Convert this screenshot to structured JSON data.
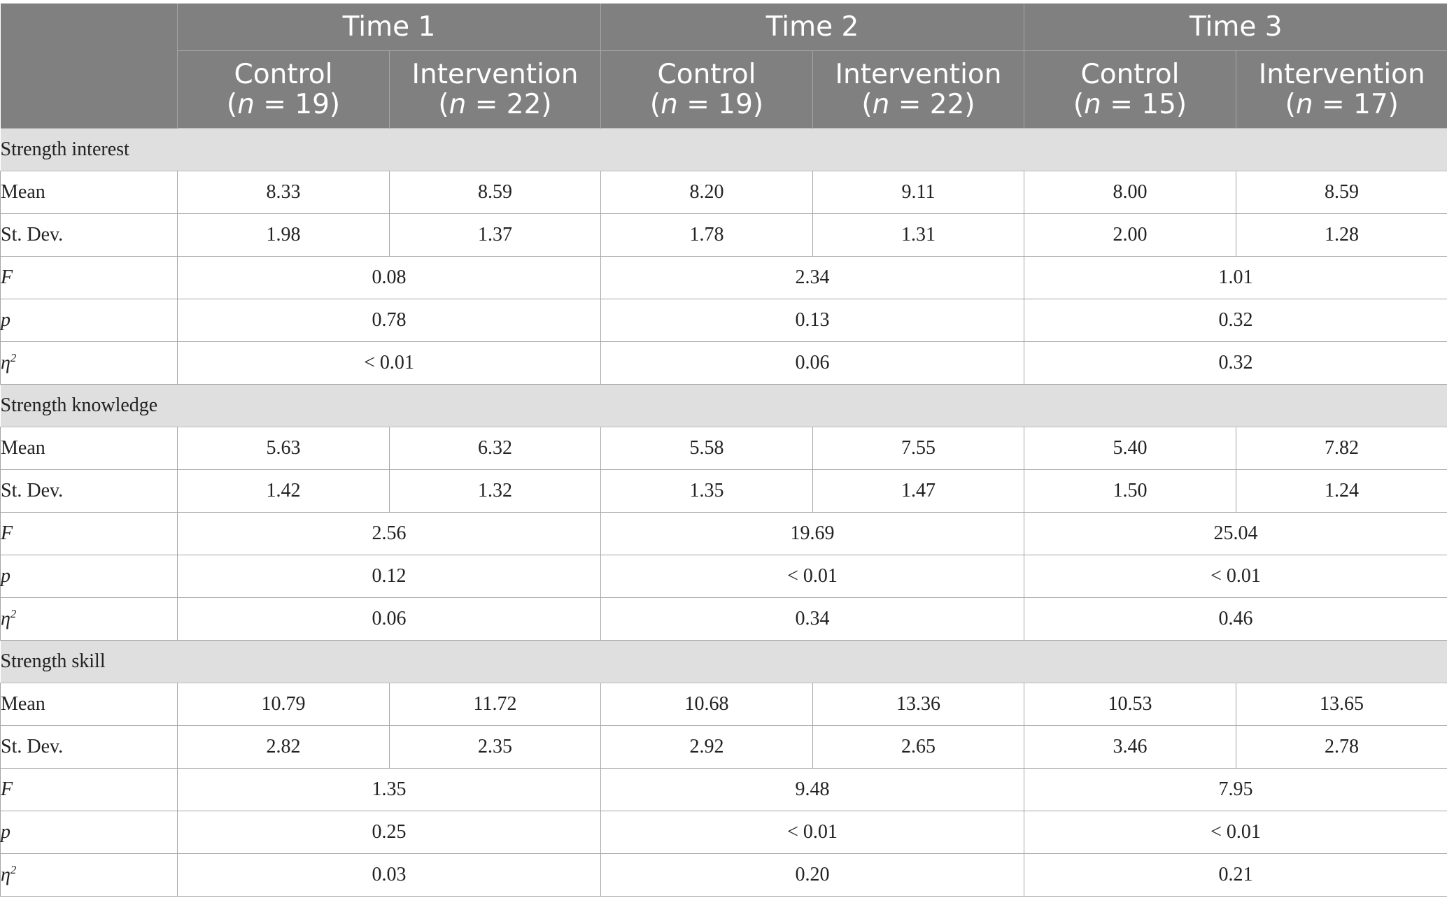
{
  "header": {
    "times": [
      "Time 1",
      "Time 2",
      "Time 3"
    ],
    "groups": [
      {
        "label": "Control",
        "n_prefix": "(",
        "n_var": "n",
        "n_value": " = 19)"
      },
      {
        "label": "Intervention",
        "n_prefix": "(",
        "n_var": "n",
        "n_value": " = 22)"
      },
      {
        "label": "Control",
        "n_prefix": "(",
        "n_var": "n",
        "n_value": " = 19)"
      },
      {
        "label": "Intervention",
        "n_prefix": "(",
        "n_var": "n",
        "n_value": " = 22)"
      },
      {
        "label": "Control",
        "n_prefix": "(",
        "n_var": "n",
        "n_value": " = 15)"
      },
      {
        "label": "Intervention",
        "n_prefix": "(",
        "n_var": "n",
        "n_value": " = 17)"
      }
    ]
  },
  "sections": [
    {
      "title": "Strength interest",
      "mean": {
        "label": "Mean",
        "values": [
          "8.33",
          "8.59",
          "8.20",
          "9.11",
          "8.00",
          "8.59"
        ]
      },
      "sd": {
        "label": "St. Dev.",
        "values": [
          "1.98",
          "1.37",
          "1.78",
          "1.31",
          "2.00",
          "1.28"
        ]
      },
      "F": {
        "label": "F",
        "values": [
          "0.08",
          "2.34",
          "1.01"
        ]
      },
      "p": {
        "label": "p",
        "values": [
          "0.78",
          "0.13",
          "0.32"
        ]
      },
      "eta": {
        "label": "η",
        "sup": "2",
        "values": [
          "< 0.01",
          "0.06",
          "0.32"
        ]
      }
    },
    {
      "title": "Strength knowledge",
      "mean": {
        "label": "Mean",
        "values": [
          "5.63",
          "6.32",
          "5.58",
          "7.55",
          "5.40",
          "7.82"
        ]
      },
      "sd": {
        "label": "St. Dev.",
        "values": [
          "1.42",
          "1.32",
          "1.35",
          "1.47",
          "1.50",
          "1.24"
        ]
      },
      "F": {
        "label": "F",
        "values": [
          "2.56",
          "19.69",
          "25.04"
        ]
      },
      "p": {
        "label": "p",
        "values": [
          "0.12",
          "< 0.01",
          "< 0.01"
        ]
      },
      "eta": {
        "label": "η",
        "sup": "2",
        "values": [
          "0.06",
          "0.34",
          "0.46"
        ]
      }
    },
    {
      "title": "Strength skill",
      "mean": {
        "label": "Mean",
        "values": [
          "10.79",
          "11.72",
          "10.68",
          "13.36",
          "10.53",
          "13.65"
        ]
      },
      "sd": {
        "label": "St. Dev.",
        "values": [
          "2.82",
          "2.35",
          "2.92",
          "2.65",
          "3.46",
          "2.78"
        ]
      },
      "F": {
        "label": "F",
        "values": [
          "1.35",
          "9.48",
          "7.95"
        ]
      },
      "p": {
        "label": "p",
        "values": [
          "0.25",
          "< 0.01",
          "< 0.01"
        ]
      },
      "eta": {
        "label": "η",
        "sup": "2",
        "values": [
          "0.03",
          "0.20",
          "0.21"
        ]
      }
    }
  ]
}
